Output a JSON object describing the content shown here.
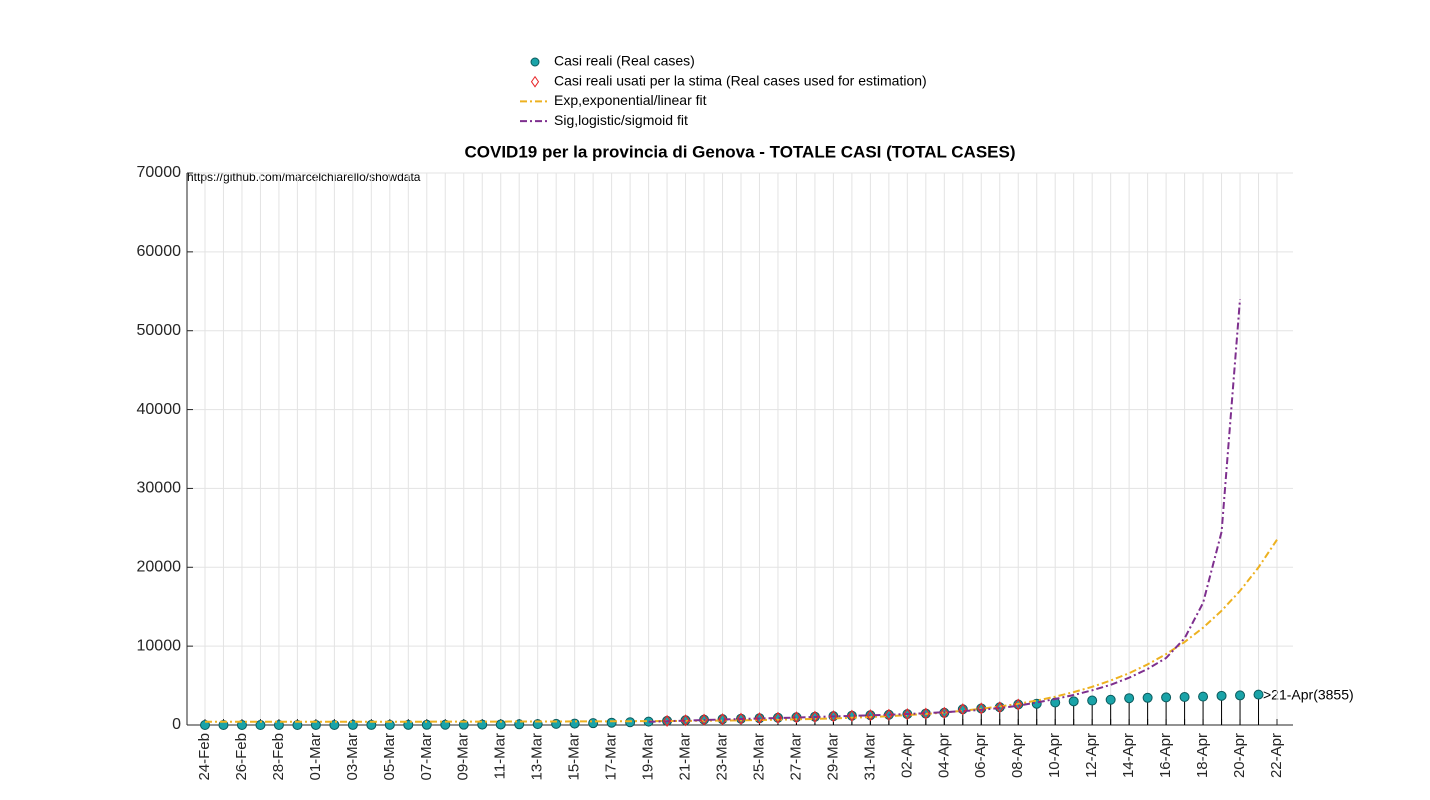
{
  "chart_data": {
    "type": "line",
    "title": "COVID19 per la provincia di Genova - TOTALE CASI (TOTAL CASES)",
    "annotations": [
      "https://github.com/marcelchiarello/showdata",
      ">21-Apr(3855)"
    ],
    "categories": [
      "24-Feb",
      null,
      "26-Feb",
      null,
      "28-Feb",
      null,
      "01-Mar",
      null,
      "03-Mar",
      null,
      "05-Mar",
      null,
      "07-Mar",
      null,
      "09-Mar",
      null,
      "11-Mar",
      null,
      "13-Mar",
      null,
      "15-Mar",
      null,
      "17-Mar",
      null,
      "19-Mar",
      null,
      "21-Mar",
      null,
      "23-Mar",
      null,
      "25-Mar",
      null,
      "27-Mar",
      null,
      "29-Mar",
      null,
      "31-Mar",
      null,
      "02-Apr",
      null,
      "04-Apr",
      null,
      "06-Apr",
      null,
      "08-Apr",
      null,
      "10-Apr",
      null,
      "12-Apr",
      null,
      "14-Apr",
      null,
      "16-Apr",
      null,
      "18-Apr",
      null,
      "20-Apr",
      null,
      "22-Apr"
    ],
    "series": [
      {
        "name": "Casi reali (Real cases)",
        "color": "#1aa3a8",
        "marker": "circle",
        "stem": true,
        "values": [
          0,
          0,
          1,
          1,
          2,
          2,
          5,
          5,
          8,
          10,
          15,
          20,
          25,
          30,
          40,
          55,
          70,
          90,
          110,
          140,
          180,
          230,
          290,
          350,
          430,
          520,
          600,
          680,
          740,
          800,
          860,
          920,
          980,
          1050,
          1120,
          1180,
          1240,
          1300,
          1380,
          1450,
          1550,
          2000,
          2100,
          2250,
          2600,
          2700,
          2850,
          3000,
          3100,
          3200,
          3400,
          3450,
          3500,
          3550,
          3600,
          3700,
          3750,
          3855,
          null
        ]
      },
      {
        "name": "Casi reali usati per la stima (Real cases used for estimation)",
        "color": "#e8262a",
        "marker": "diamond",
        "values": [
          null,
          null,
          null,
          null,
          null,
          null,
          null,
          null,
          null,
          null,
          null,
          null,
          null,
          null,
          null,
          null,
          null,
          null,
          null,
          null,
          null,
          null,
          null,
          null,
          null,
          520,
          600,
          680,
          740,
          800,
          860,
          920,
          980,
          1050,
          1120,
          1180,
          1240,
          1300,
          1380,
          1450,
          1550,
          2000,
          2100,
          2250,
          2600,
          null,
          null,
          null,
          null,
          null,
          null,
          null,
          null,
          null,
          null,
          null,
          null,
          null,
          null
        ]
      },
      {
        "name": "Exp,exponential/linear fit",
        "color": "#edb120",
        "marker": "line",
        "values": [
          405,
          406,
          407,
          408,
          409,
          410,
          411,
          412,
          414,
          416,
          418,
          420,
          423,
          425,
          428,
          430,
          435,
          440,
          445,
          450,
          455,
          460,
          470,
          480,
          490,
          505,
          520,
          540,
          560,
          590,
          630,
          670,
          720,
          770,
          840,
          920,
          1010,
          1120,
          1250,
          1410,
          1590,
          1800,
          2050,
          2350,
          2690,
          3100,
          3590,
          4170,
          4840,
          5640,
          6570,
          7680,
          8990,
          10520,
          12340,
          14490,
          17010,
          19990,
          23500
        ]
      },
      {
        "name": "Sig,logistic/sigmoid fit",
        "color": "#7e2f8e",
        "marker": "line",
        "values": [
          null,
          null,
          null,
          null,
          null,
          null,
          null,
          null,
          null,
          null,
          null,
          null,
          null,
          null,
          null,
          null,
          null,
          null,
          null,
          null,
          null,
          null,
          null,
          null,
          400,
          480,
          560,
          640,
          700,
          760,
          820,
          880,
          950,
          1020,
          1090,
          1160,
          1230,
          1310,
          1400,
          1500,
          1620,
          1760,
          1930,
          2150,
          2450,
          2850,
          3300,
          3800,
          4400,
          5100,
          6000,
          7100,
          8500,
          11000,
          15500,
          24500,
          54000,
          null,
          null
        ]
      }
    ],
    "ylim": [
      0,
      70000
    ],
    "yticks": [
      0,
      10000,
      20000,
      30000,
      40000,
      50000,
      60000,
      70000
    ],
    "grid": true
  }
}
